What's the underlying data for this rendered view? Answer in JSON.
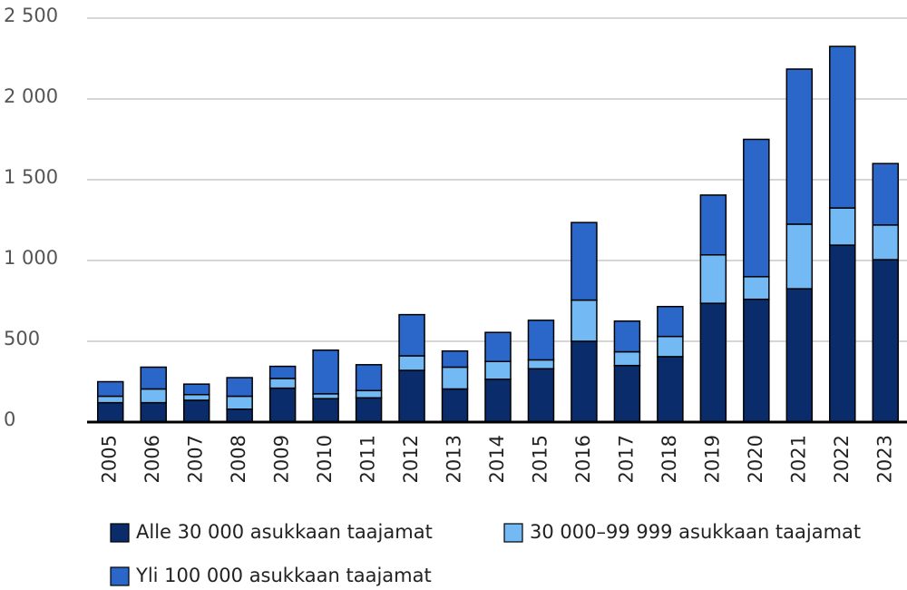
{
  "chart_data": {
    "type": "stacked_bar",
    "categories": [
      "2005",
      "2006",
      "2007",
      "2008",
      "2009",
      "2010",
      "2011",
      "2012",
      "2013",
      "2014",
      "2015",
      "2016",
      "2017",
      "2018",
      "2019",
      "2020",
      "2021",
      "2022",
      "2023"
    ],
    "series": [
      {
        "name": "Alle 30 000 asukkaan taajamat",
        "color": "#0b2c6b",
        "values": [
          120,
          120,
          135,
          80,
          210,
          145,
          150,
          320,
          205,
          265,
          330,
          500,
          350,
          405,
          735,
          760,
          825,
          1095,
          1005
        ]
      },
      {
        "name": "30 000–99 999 asukkaan taajamat",
        "color": "#73baf5",
        "values": [
          40,
          85,
          35,
          80,
          60,
          30,
          45,
          90,
          135,
          110,
          55,
          255,
          85,
          125,
          300,
          140,
          400,
          230,
          215
        ]
      },
      {
        "name": "Yli 100 000 asukkaan taajamat",
        "color": "#2b67c9",
        "values": [
          90,
          135,
          65,
          115,
          75,
          270,
          160,
          255,
          100,
          180,
          245,
          480,
          190,
          185,
          370,
          850,
          960,
          1000,
          380
        ]
      }
    ],
    "ylim": [
      0,
      2500
    ],
    "yticks": [
      0,
      500,
      {
        "value": 1000,
        "label": "1 000"
      },
      {
        "value": 1500,
        "label": "1 500"
      },
      {
        "value": 2000,
        "label": "2 000"
      },
      {
        "value": 2500,
        "label": "2 500"
      }
    ],
    "grid": true
  }
}
